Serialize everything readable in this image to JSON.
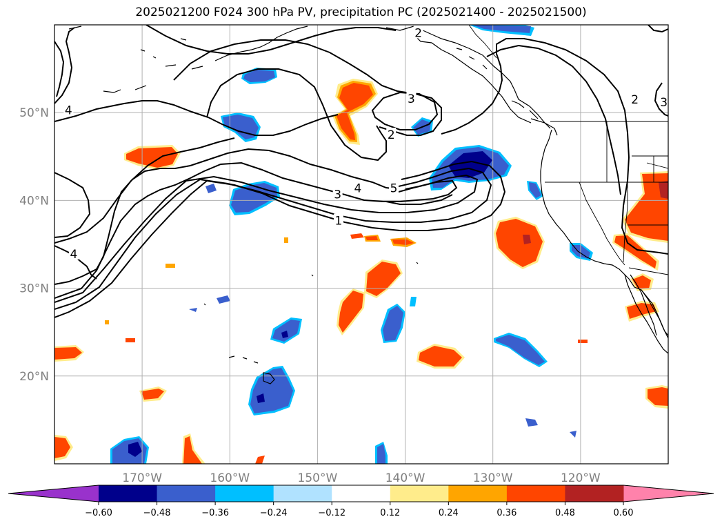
{
  "title": "2025021200 F024 300 hPa PV, precipitation PC (2025021400 - 2025021500)",
  "map": {
    "lon_range": [
      -180,
      -110
    ],
    "lat_range": [
      10,
      60
    ],
    "lat_labels": [
      {
        "lat": 50,
        "text": "50°N"
      },
      {
        "lat": 40,
        "text": "40°N"
      },
      {
        "lat": 30,
        "text": "30°N"
      },
      {
        "lat": 20,
        "text": "20°N"
      }
    ],
    "lon_labels": [
      {
        "lon": -170,
        "text": "170°W"
      },
      {
        "lon": -160,
        "text": "160°W"
      },
      {
        "lon": -150,
        "text": "150°W"
      },
      {
        "lon": -140,
        "text": "140°W"
      },
      {
        "lon": -130,
        "text": "130°W"
      },
      {
        "lon": -120,
        "text": "120°W"
      }
    ],
    "gridlines": true
  },
  "contour_labels": [
    {
      "text": "2",
      "lon": -138.5,
      "lat": 59.1
    },
    {
      "text": "3",
      "lon": -139.3,
      "lat": 51.6
    },
    {
      "text": "4",
      "lon": -178.4,
      "lat": 50.3
    },
    {
      "text": "2",
      "lon": -141.6,
      "lat": 47.5
    },
    {
      "text": "2",
      "lon": -113.8,
      "lat": 51.5
    },
    {
      "text": "3",
      "lon": -110.5,
      "lat": 51.2
    },
    {
      "text": "5",
      "lon": -141.3,
      "lat": 41.4
    },
    {
      "text": "4",
      "lon": -145.4,
      "lat": 41.4
    },
    {
      "text": "3",
      "lon": -147.7,
      "lat": 40.7
    },
    {
      "text": "1",
      "lon": -147.6,
      "lat": 37.7
    },
    {
      "text": "4",
      "lon": -177.8,
      "lat": 33.9
    }
  ],
  "colorbar": {
    "ticks": [
      "−0.60",
      "−0.48",
      "−0.36",
      "−0.24",
      "−0.12",
      "0.12",
      "0.24",
      "0.36",
      "0.48",
      "0.60"
    ],
    "colors": [
      "#9932cc",
      "#00008b",
      "#3a5fcd",
      "#00bfff",
      "#b0e2ff",
      "#ffffff",
      "#ffec8b",
      "#ffa500",
      "#ff4500",
      "#b22222",
      "#ff82ab"
    ]
  },
  "colors": {
    "neg_strong": "#00008b",
    "neg_mid": "#3a5fcd",
    "neg_light": "#00bfff",
    "pos_light": "#ffec8b",
    "pos_mid": "#ffa500",
    "pos_strong": "#ff4500",
    "pos_max": "#b22222"
  }
}
